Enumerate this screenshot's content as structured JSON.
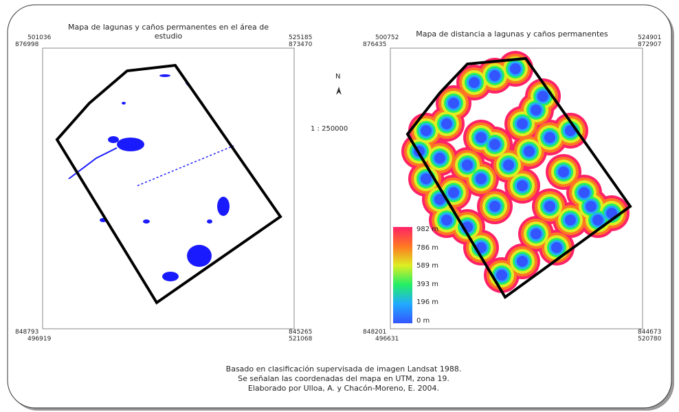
{
  "left_map": {
    "title": "Mapa de lagunas y caños permanentes en el área de estudio",
    "top_left": [
      "501036",
      "876998"
    ],
    "top_right": [
      "525185",
      "873470"
    ],
    "bottom_left": [
      "848793",
      "496919"
    ],
    "bottom_right": [
      "845265",
      "521068"
    ]
  },
  "right_map": {
    "title": "Mapa de distancia a lagunas y caños permanentes",
    "top_left": [
      "500752",
      "876435"
    ],
    "top_right": [
      "524901",
      "872907"
    ],
    "bottom_left": [
      "848201",
      "496631"
    ],
    "bottom_right": [
      "844673",
      "520780"
    ],
    "legend": [
      "982 m",
      "786 m",
      "589 m",
      "393 m",
      "196 m",
      "0 m"
    ]
  },
  "north": "N",
  "scale": "1 : 250000",
  "footer": [
    "Basado en clasificación supervisada de imagen Landsat 1988.",
    "Se señalan las coordenadas del mapa en UTM, zona 19.",
    "Elaborado por Ulloa, A. y Chacón-Moreno, E. 2004."
  ]
}
